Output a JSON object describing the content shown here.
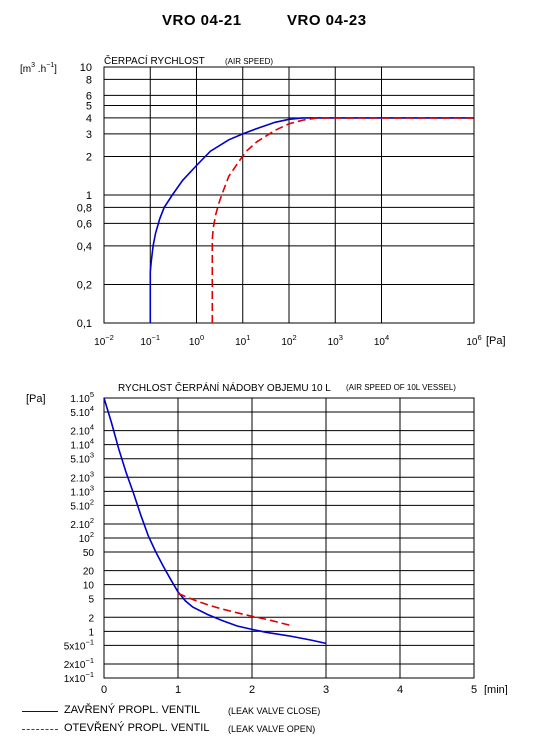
{
  "header": {
    "model_a": "VRO 04-21",
    "model_b": "VRO 04-23"
  },
  "legend": {
    "closed_label": "ZAVŘENÝ  PROPL.  VENTIL",
    "closed_note": "(LEAK VALVE CLOSE)",
    "open_label": "OTEVŘENÝ  PROPL.  VENTIL",
    "open_note": "(LEAK VALVE OPEN)",
    "colors": {
      "closed": "#0000cc",
      "open": "#dd0000"
    }
  },
  "chart_data": [
    {
      "type": "line",
      "title": "ČERPACÍ RYCHLOST",
      "subtitle": "(AIR SPEED)",
      "ylabel_base": "[m",
      "ylabel_sup1": "3",
      "ylabel_mid": " .h",
      "ylabel_sup2": "−1",
      "ylabel_end": "]",
      "xlabel": "[Pa]",
      "x_scale": "log",
      "y_scale": "log",
      "xlim": [
        0.01,
        1000000
      ],
      "ylim": [
        0.1,
        10
      ],
      "grid": true,
      "x_ticks": [
        {
          "value": 0.01,
          "base": "10",
          "exp": "−2"
        },
        {
          "value": 0.1,
          "base": "10",
          "exp": "−1"
        },
        {
          "value": 1,
          "base": "10",
          "exp": "0"
        },
        {
          "value": 10,
          "base": "10",
          "exp": "1"
        },
        {
          "value": 100,
          "base": "10",
          "exp": "2"
        },
        {
          "value": 1000,
          "base": "10",
          "exp": "3"
        },
        {
          "value": 10000,
          "base": "10",
          "exp": "4"
        },
        {
          "value": 1000000,
          "base": "10",
          "exp": "6"
        }
      ],
      "y_ticks": [
        {
          "value": 10,
          "label": "10"
        },
        {
          "value": 8,
          "label": "8"
        },
        {
          "value": 6,
          "label": "6"
        },
        {
          "value": 5,
          "label": "5"
        },
        {
          "value": 4,
          "label": "4"
        },
        {
          "value": 3,
          "label": "3"
        },
        {
          "value": 2,
          "label": "2"
        },
        {
          "value": 1,
          "label": "1"
        },
        {
          "value": 0.8,
          "label": "0,8"
        },
        {
          "value": 0.6,
          "label": "0,6"
        },
        {
          "value": 0.4,
          "label": "0,4"
        },
        {
          "value": 0.2,
          "label": "0,2"
        },
        {
          "value": 0.1,
          "label": "0,1"
        }
      ],
      "series": [
        {
          "key": "closed",
          "style": "solid",
          "points": [
            [
              0.1,
              0.1
            ],
            [
              0.1,
              0.25
            ],
            [
              0.105,
              0.3
            ],
            [
              0.115,
              0.4
            ],
            [
              0.13,
              0.5
            ],
            [
              0.16,
              0.65
            ],
            [
              0.2,
              0.8
            ],
            [
              0.3,
              1.0
            ],
            [
              0.5,
              1.3
            ],
            [
              1,
              1.7
            ],
            [
              2,
              2.2
            ],
            [
              5,
              2.7
            ],
            [
              10,
              3.0
            ],
            [
              20,
              3.3
            ],
            [
              50,
              3.7
            ],
            [
              100,
              3.9
            ],
            [
              200,
              4.0
            ],
            [
              1000000,
              4.0
            ]
          ]
        },
        {
          "key": "open",
          "style": "dashed",
          "points": [
            [
              2.2,
              0.1
            ],
            [
              2.2,
              0.45
            ],
            [
              2.3,
              0.55
            ],
            [
              2.6,
              0.7
            ],
            [
              3,
              0.85
            ],
            [
              3.5,
              1.0
            ],
            [
              5,
              1.4
            ],
            [
              8,
              1.8
            ],
            [
              12,
              2.2
            ],
            [
              20,
              2.6
            ],
            [
              50,
              3.2
            ],
            [
              100,
              3.6
            ],
            [
              200,
              3.85
            ],
            [
              400,
              4.0
            ],
            [
              1000000,
              4.0
            ]
          ]
        }
      ]
    },
    {
      "type": "line",
      "title": "RYCHLOST ČERPÁNÍ NÁDOBY OBJEMU 10 L",
      "subtitle": "(AIR SPEED OF 10L VESSEL)",
      "ylabel": "[Pa]",
      "xlabel": "[min]",
      "x_scale": "linear",
      "y_scale": "log",
      "xlim": [
        0,
        5
      ],
      "ylim": [
        0.1,
        100000
      ],
      "grid": true,
      "x_ticks": [
        0,
        1,
        2,
        3,
        4,
        5
      ],
      "y_ticks": [
        {
          "value": 100000,
          "base": "1.10",
          "exp": "5"
        },
        {
          "value": 50000,
          "base": "5.10",
          "exp": "4"
        },
        {
          "value": 20000,
          "base": "2.10",
          "exp": "4"
        },
        {
          "value": 10000,
          "base": "1.10",
          "exp": "4"
        },
        {
          "value": 5000,
          "base": "5.10",
          "exp": "3"
        },
        {
          "value": 2000,
          "base": "2.10",
          "exp": "3"
        },
        {
          "value": 1000,
          "base": "1.10",
          "exp": "3"
        },
        {
          "value": 500,
          "base": "5.10",
          "exp": "2"
        },
        {
          "value": 200,
          "base": "2.10",
          "exp": "2"
        },
        {
          "value": 100,
          "base": "10",
          "exp": "2"
        },
        {
          "value": 50,
          "base": "50",
          "exp": ""
        },
        {
          "value": 20,
          "base": "20",
          "exp": ""
        },
        {
          "value": 10,
          "base": "10",
          "exp": ""
        },
        {
          "value": 5,
          "base": "5",
          "exp": ""
        },
        {
          "value": 2,
          "base": "2",
          "exp": ""
        },
        {
          "value": 1,
          "base": "1",
          "exp": ""
        },
        {
          "value": 0.5,
          "base": "5x10",
          "exp": "−1"
        },
        {
          "value": 0.2,
          "base": "2x10",
          "exp": "−1"
        },
        {
          "value": 0.1,
          "base": "1x10",
          "exp": "−1"
        }
      ],
      "series": [
        {
          "key": "closed",
          "style": "solid",
          "points": [
            [
              0,
              100000
            ],
            [
              0.1,
              30000
            ],
            [
              0.2,
              8000
            ],
            [
              0.3,
              2500
            ],
            [
              0.4,
              900
            ],
            [
              0.5,
              300
            ],
            [
              0.6,
              110
            ],
            [
              0.7,
              50
            ],
            [
              0.8,
              25
            ],
            [
              0.9,
              13
            ],
            [
              1.0,
              7
            ],
            [
              1.1,
              4.5
            ],
            [
              1.2,
              3.3
            ],
            [
              1.4,
              2.3
            ],
            [
              1.6,
              1.7
            ],
            [
              1.8,
              1.3
            ],
            [
              2.0,
              1.1
            ],
            [
              2.2,
              0.95
            ],
            [
              2.5,
              0.8
            ],
            [
              2.8,
              0.65
            ],
            [
              3.0,
              0.55
            ]
          ]
        },
        {
          "key": "open",
          "style": "dashed",
          "points": [
            [
              1.0,
              6.5
            ],
            [
              1.2,
              4.8
            ],
            [
              1.4,
              3.7
            ],
            [
              1.6,
              3.0
            ],
            [
              1.8,
              2.5
            ],
            [
              2.0,
              2.1
            ],
            [
              2.2,
              1.8
            ],
            [
              2.4,
              1.5
            ],
            [
              2.55,
              1.3
            ]
          ]
        }
      ]
    }
  ]
}
